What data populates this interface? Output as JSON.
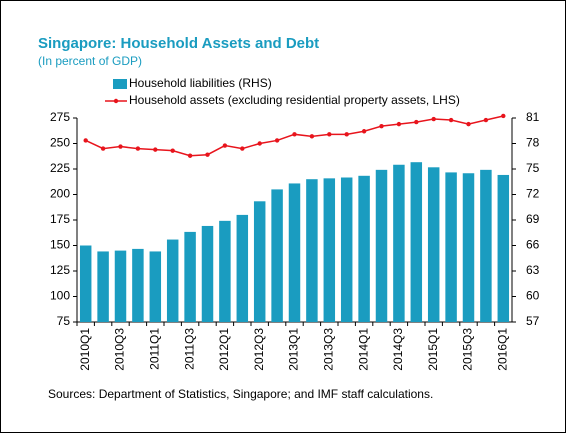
{
  "chart_data": {
    "type": "bar_line",
    "title": "Singapore: Household Assets and Debt",
    "subtitle": "(In percent of GDP)",
    "source": "Sources: Department of Statistics, Singapore; and IMF staff calculations.",
    "categories": [
      "2010Q1",
      null,
      "2010Q3",
      null,
      "2011Q1",
      null,
      "2011Q3",
      null,
      "2012Q1",
      null,
      "2012Q3",
      null,
      "2013Q1",
      null,
      "2013Q3",
      null,
      "2014Q1",
      null,
      "2014Q3",
      null,
      "2015Q1",
      null,
      "2015Q3",
      null,
      "2016Q1"
    ],
    "series": [
      {
        "name": "Household liabilities (RHS)",
        "color": "#1a9cc0",
        "axis": "y2",
        "kind": "bar",
        "values": [
          66.0,
          65.3,
          65.4,
          65.6,
          65.3,
          66.7,
          67.6,
          68.3,
          68.9,
          69.6,
          71.2,
          72.6,
          73.3,
          73.8,
          73.9,
          74.0,
          74.2,
          74.9,
          75.5,
          75.8,
          75.2,
          74.6,
          74.5,
          74.9,
          74.3
        ]
      },
      {
        "name": "Household assets (excluding residential property assets, LHS)",
        "color": "#e8141c",
        "kind": "line",
        "values": [
          253,
          245,
          247,
          245,
          244,
          243,
          238,
          239,
          248,
          245,
          250,
          253,
          259,
          257,
          259,
          259,
          262,
          267,
          269,
          271,
          274,
          273,
          269,
          273,
          277
        ]
      }
    ],
    "ylim": [
      75,
      275
    ],
    "yticks": [
      75,
      100,
      125,
      150,
      175,
      200,
      225,
      250,
      275
    ],
    "y2lim": [
      57,
      81
    ],
    "y2ticks": [
      57,
      60,
      63,
      66,
      69,
      72,
      75,
      78,
      81
    ]
  }
}
